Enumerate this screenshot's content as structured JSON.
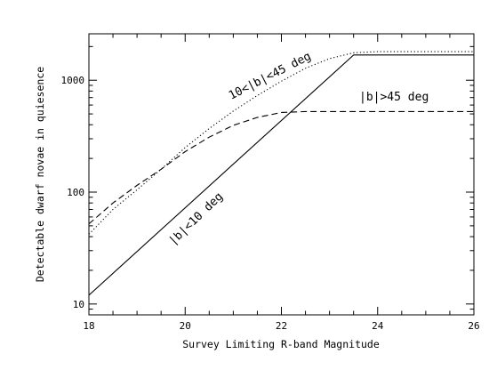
{
  "chart_data": {
    "type": "line",
    "title": "",
    "xlabel": "Survey Limiting R-band Magnitude",
    "ylabel": "Detectable dwarf novae in quiesence",
    "xlim": [
      18,
      26
    ],
    "ylim": [
      8,
      2600
    ],
    "yscale": "log",
    "grid": false,
    "legend": "none",
    "x_ticks": [
      "18",
      "20",
      "22",
      "24",
      "26"
    ],
    "y_ticks": [
      "10",
      "100",
      "1000"
    ],
    "series": [
      {
        "name": "|b|<10 deg",
        "style": "solid",
        "x": [
          18,
          23.5,
          26
        ],
        "y": [
          12,
          1680,
          1680
        ]
      },
      {
        "name": "|b|>45 deg",
        "style": "dashed",
        "x": [
          18,
          18.5,
          19,
          19.5,
          20,
          20.5,
          21,
          21.5,
          22,
          22.5,
          23,
          23.5,
          24,
          25,
          26
        ],
        "y": [
          52,
          80,
          115,
          160,
          230,
          310,
          395,
          465,
          515,
          525,
          525,
          525,
          525,
          525,
          525
        ]
      },
      {
        "name": "10<|b|<45 deg",
        "style": "dotted",
        "x": [
          18,
          18.5,
          19,
          19.5,
          20,
          20.5,
          21,
          21.5,
          22,
          22.5,
          23,
          23.5,
          24,
          25,
          26
        ],
        "y": [
          42,
          70,
          105,
          160,
          250,
          370,
          530,
          730,
          980,
          1280,
          1560,
          1760,
          1800,
          1800,
          1800
        ]
      }
    ]
  }
}
